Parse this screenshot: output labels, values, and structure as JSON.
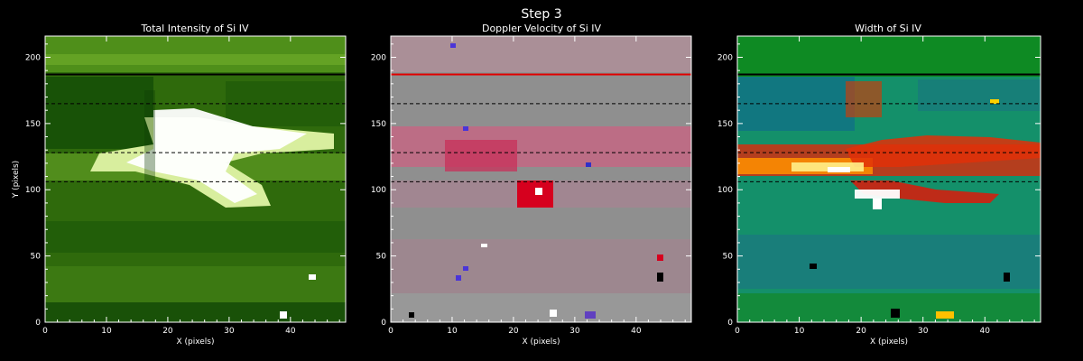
{
  "figure": {
    "title": "Step 3"
  },
  "colors": {
    "background": "#000000",
    "text": "#ffffff",
    "axis": "#ffffff",
    "dashed_line": "#000000"
  },
  "chart_data": [
    {
      "type": "heatmap",
      "title": "Total Intensity of Si IV",
      "xlabel": "X (pixels)",
      "ylabel": "Y (pixels)",
      "xlim": [
        0,
        49
      ],
      "ylim": [
        0,
        216
      ],
      "xticks": [
        0,
        10,
        20,
        30,
        40
      ],
      "yticks": [
        0,
        50,
        100,
        150,
        200
      ],
      "colormap": "black-green-yellow-white",
      "horizontal_lines": [
        {
          "y": 187,
          "style": "solid",
          "color": "#000000"
        },
        {
          "y": 165,
          "style": "dashed",
          "color": "#000000"
        },
        {
          "y": 128,
          "style": "dashed",
          "color": "#000000"
        },
        {
          "y": 106,
          "style": "dashed",
          "color": "#000000"
        }
      ]
    },
    {
      "type": "heatmap",
      "title": "Doppler Velocity of Si IV",
      "xlabel": "X (pixels)",
      "ylabel": "",
      "xlim": [
        0,
        49
      ],
      "ylim": [
        0,
        216
      ],
      "xticks": [
        0,
        10,
        20,
        30,
        40
      ],
      "yticks": [
        0,
        50,
        100,
        150,
        200
      ],
      "colormap": "blue-gray-red",
      "horizontal_lines": [
        {
          "y": 187,
          "style": "solid",
          "color": "#e00000"
        },
        {
          "y": 165,
          "style": "dashed",
          "color": "#000000"
        },
        {
          "y": 128,
          "style": "dashed",
          "color": "#000000"
        },
        {
          "y": 106,
          "style": "dashed",
          "color": "#000000"
        }
      ]
    },
    {
      "type": "heatmap",
      "title": "Width of Si IV",
      "xlabel": "X (pixels)",
      "ylabel": "",
      "xlim": [
        0,
        49
      ],
      "ylim": [
        0,
        216
      ],
      "xticks": [
        0,
        10,
        20,
        30,
        40
      ],
      "yticks": [
        0,
        50,
        100,
        150,
        200
      ],
      "colormap": "blue-green-red-yellow-white",
      "horizontal_lines": [
        {
          "y": 187,
          "style": "solid",
          "color": "#000000"
        },
        {
          "y": 165,
          "style": "dashed",
          "color": "#000000"
        },
        {
          "y": 128,
          "style": "dashed",
          "color": "#000000"
        },
        {
          "y": 106,
          "style": "dashed",
          "color": "#000000"
        }
      ]
    }
  ]
}
